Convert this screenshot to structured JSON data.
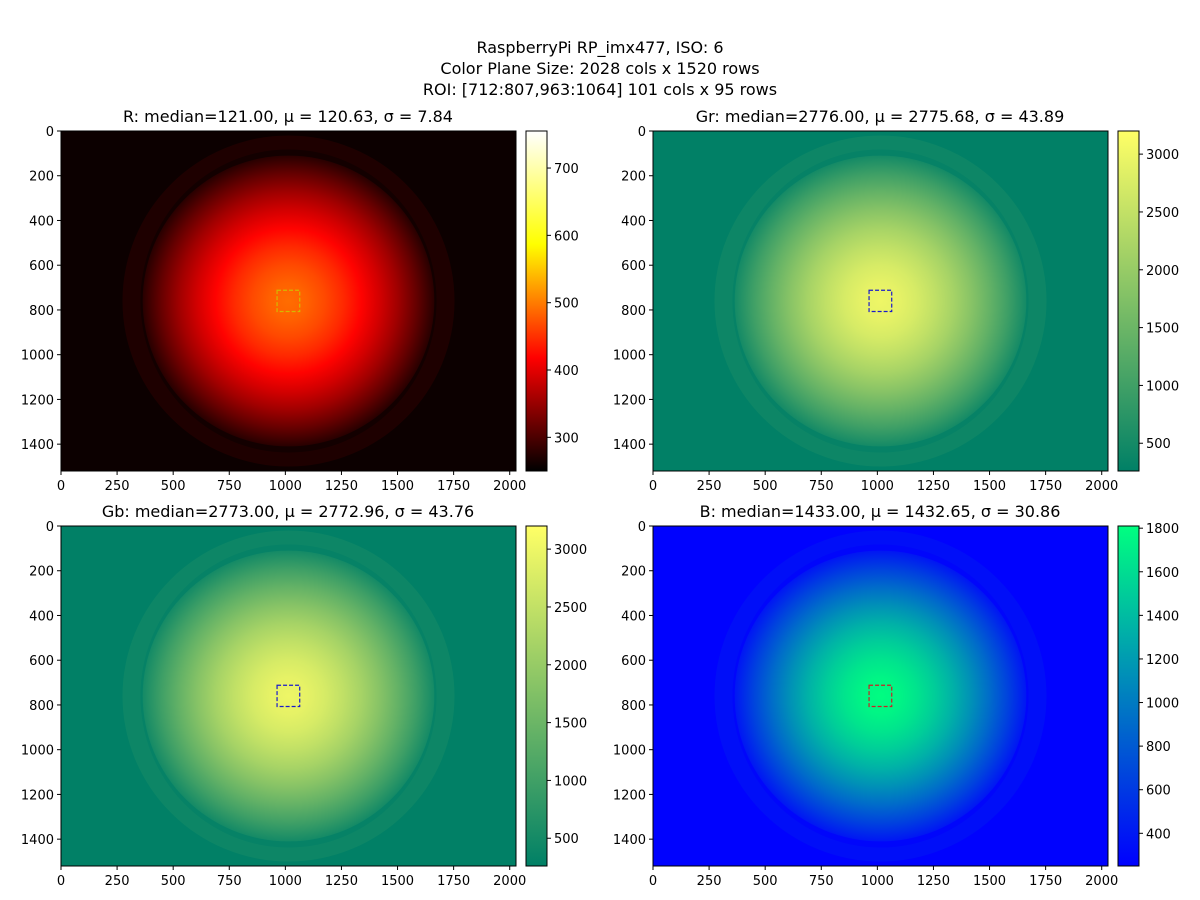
{
  "suptitle": [
    "RaspberryPi RP_imx477, ISO: 6",
    "Color Plane Size: 2028 cols x 1520 rows",
    "ROI: [712:807,963:1064] 101 cols x 95 rows"
  ],
  "chart_data": [
    {
      "type": "heatmap",
      "title": "R: median=121.00, μ = 120.63, σ = 7.84",
      "colormap": "hot",
      "colors": [
        "#000000",
        "#ff0000",
        "#ffff00",
        "#ffffff"
      ],
      "xlim": [
        0,
        2028
      ],
      "ylim": [
        1520,
        0
      ],
      "xticks": [
        0,
        250,
        500,
        750,
        1000,
        1250,
        1500,
        1750,
        2000
      ],
      "yticks": [
        0,
        200,
        400,
        600,
        800,
        1000,
        1200,
        1400
      ],
      "vignette": {
        "center_x": 1014,
        "center_y": 760,
        "radius": 650,
        "ring_radius": 740,
        "center_value": 490,
        "background_value": 258
      },
      "roi": {
        "x0": 963,
        "x1": 1064,
        "y0": 712,
        "y1": 807,
        "color": "#d4b800"
      },
      "colorbar": {
        "min": 250,
        "max": 755,
        "ticks": [
          300,
          400,
          500,
          600,
          700
        ]
      }
    },
    {
      "type": "heatmap",
      "title": "Gr: median=2776.00, μ = 2775.68, σ = 43.89",
      "colormap": "summer",
      "colors": [
        "#008066",
        "#ffff66"
      ],
      "xlim": [
        0,
        2028
      ],
      "ylim": [
        1520,
        0
      ],
      "xticks": [
        0,
        250,
        500,
        750,
        1000,
        1250,
        1500,
        1750,
        2000
      ],
      "yticks": [
        0,
        200,
        400,
        600,
        800,
        1000,
        1200,
        1400
      ],
      "vignette": {
        "center_x": 1014,
        "center_y": 760,
        "radius": 650,
        "ring_radius": 740,
        "center_value": 3000,
        "background_value": 270
      },
      "roi": {
        "x0": 963,
        "x1": 1064,
        "y0": 712,
        "y1": 807,
        "color": "#1a1acc"
      },
      "colorbar": {
        "min": 260,
        "max": 3200,
        "ticks": [
          500,
          1000,
          1500,
          2000,
          2500,
          3000
        ]
      }
    },
    {
      "type": "heatmap",
      "title": "Gb: median=2773.00, μ = 2772.96, σ = 43.76",
      "colormap": "summer",
      "colors": [
        "#008066",
        "#ffff66"
      ],
      "xlim": [
        0,
        2028
      ],
      "ylim": [
        1520,
        0
      ],
      "xticks": [
        0,
        250,
        500,
        750,
        1000,
        1250,
        1500,
        1750,
        2000
      ],
      "yticks": [
        0,
        200,
        400,
        600,
        800,
        1000,
        1200,
        1400
      ],
      "vignette": {
        "center_x": 1014,
        "center_y": 760,
        "radius": 650,
        "ring_radius": 740,
        "center_value": 3000,
        "background_value": 270
      },
      "roi": {
        "x0": 963,
        "x1": 1064,
        "y0": 712,
        "y1": 807,
        "color": "#1a1acc"
      },
      "colorbar": {
        "min": 260,
        "max": 3200,
        "ticks": [
          500,
          1000,
          1500,
          2000,
          2500,
          3000
        ]
      }
    },
    {
      "type": "heatmap",
      "title": "B: median=1433.00, μ = 1432.65, σ = 30.86",
      "colormap": "winter",
      "colors": [
        "#0000ff",
        "#00ff80"
      ],
      "xlim": [
        0,
        2028
      ],
      "ylim": [
        1520,
        0
      ],
      "xticks": [
        0,
        250,
        500,
        750,
        1000,
        1250,
        1500,
        1750,
        2000
      ],
      "yticks": [
        0,
        200,
        400,
        600,
        800,
        1000,
        1200,
        1400
      ],
      "vignette": {
        "center_x": 1014,
        "center_y": 760,
        "radius": 650,
        "ring_radius": 740,
        "center_value": 1800,
        "background_value": 260
      },
      "roi": {
        "x0": 963,
        "x1": 1064,
        "y0": 712,
        "y1": 807,
        "color": "#cc2222"
      },
      "colorbar": {
        "min": 250,
        "max": 1810,
        "ticks": [
          400,
          600,
          800,
          1000,
          1200,
          1400,
          1600,
          1800
        ]
      }
    }
  ]
}
